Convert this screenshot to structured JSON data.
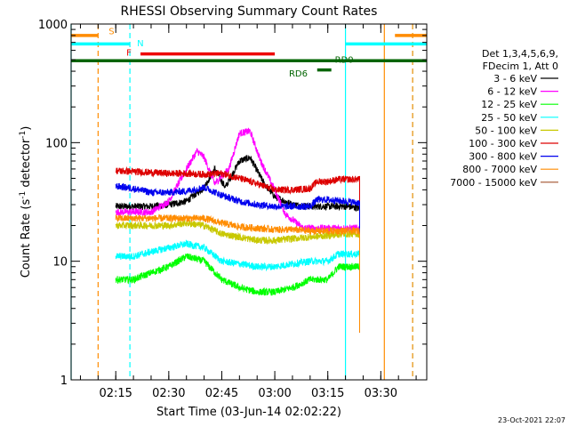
{
  "chart_data": {
    "type": "line",
    "title": "RHESSI Observing Summary Count Rates",
    "xlabel": "Start Time (03-Jun-14 02:02:22)",
    "ylabel_prefix": "Count Rate (s",
    "ylabel_sup1": "-1",
    "ylabel_mid": " detector",
    "ylabel_sup2": "-1",
    "ylabel_suffix": ")",
    "y_scale": "log",
    "ylim": [
      1,
      1000
    ],
    "xlim": [
      "02:02:22",
      "03:43:00"
    ],
    "x_ticks": [
      "02:15",
      "02:30",
      "02:45",
      "03:00",
      "03:15",
      "03:30"
    ],
    "y_ticks": [
      "1",
      "10",
      "100",
      "1000"
    ],
    "timestamp": "23-Oct-2021 22:07",
    "legend_header": [
      "Det 1,3,4,5,6,9,",
      "FDecim 1, Att 0"
    ],
    "series": [
      {
        "name": "3 - 6 keV",
        "color": "#000000",
        "points": [
          [
            "02:15",
            29
          ],
          [
            "02:25",
            29
          ],
          [
            "02:30",
            30
          ],
          [
            "02:35",
            32
          ],
          [
            "02:40",
            42
          ],
          [
            "02:43",
            60
          ],
          [
            "02:46",
            42
          ],
          [
            "02:50",
            70
          ],
          [
            "02:53",
            75
          ],
          [
            "02:57",
            45
          ],
          [
            "03:00",
            35
          ],
          [
            "03:05",
            30
          ],
          [
            "03:10",
            29
          ],
          [
            "03:15",
            29
          ],
          [
            "03:20",
            29
          ],
          [
            "03:24",
            28
          ]
        ]
      },
      {
        "name": "6 - 12 keV",
        "color": "#ff00ff",
        "points": [
          [
            "02:15",
            26
          ],
          [
            "02:25",
            26
          ],
          [
            "02:30",
            32
          ],
          [
            "02:35",
            60
          ],
          [
            "02:38",
            85
          ],
          [
            "02:40",
            75
          ],
          [
            "02:43",
            45
          ],
          [
            "02:47",
            60
          ],
          [
            "02:50",
            120
          ],
          [
            "02:53",
            125
          ],
          [
            "02:56",
            70
          ],
          [
            "03:00",
            40
          ],
          [
            "03:03",
            25
          ],
          [
            "03:08",
            19
          ],
          [
            "03:12",
            19
          ],
          [
            "03:15",
            19
          ],
          [
            "03:20",
            19
          ],
          [
            "03:24",
            19
          ]
        ]
      },
      {
        "name": "12 - 25 keV",
        "color": "#00ff00",
        "points": [
          [
            "02:15",
            7
          ],
          [
            "02:20",
            7
          ],
          [
            "02:25",
            8
          ],
          [
            "02:30",
            9
          ],
          [
            "02:35",
            11
          ],
          [
            "02:40",
            10
          ],
          [
            "02:45",
            7
          ],
          [
            "02:50",
            6
          ],
          [
            "02:55",
            5.5
          ],
          [
            "03:00",
            5.5
          ],
          [
            "03:05",
            6
          ],
          [
            "03:10",
            7
          ],
          [
            "03:15",
            7
          ],
          [
            "03:18",
            9
          ],
          [
            "03:24",
            9
          ]
        ]
      },
      {
        "name": "25 - 50 keV",
        "color": "#00ffff",
        "points": [
          [
            "02:15",
            11
          ],
          [
            "02:20",
            11
          ],
          [
            "02:25",
            12
          ],
          [
            "02:30",
            13
          ],
          [
            "02:35",
            14
          ],
          [
            "02:40",
            13
          ],
          [
            "02:45",
            10
          ],
          [
            "02:50",
            9.5
          ],
          [
            "02:55",
            9
          ],
          [
            "03:00",
            9
          ],
          [
            "03:05",
            9.5
          ],
          [
            "03:10",
            10
          ],
          [
            "03:15",
            10
          ],
          [
            "03:18",
            11.5
          ],
          [
            "03:24",
            11.5
          ]
        ]
      },
      {
        "name": "50 - 100 keV",
        "color": "#c8c800",
        "points": [
          [
            "02:15",
            20
          ],
          [
            "02:20",
            20
          ],
          [
            "02:25",
            20
          ],
          [
            "02:30",
            20
          ],
          [
            "02:35",
            21
          ],
          [
            "02:40",
            20
          ],
          [
            "02:45",
            17
          ],
          [
            "02:50",
            16
          ],
          [
            "02:55",
            15
          ],
          [
            "03:00",
            15
          ],
          [
            "03:05",
            15.5
          ],
          [
            "03:10",
            16
          ],
          [
            "03:15",
            16.5
          ],
          [
            "03:20",
            17
          ],
          [
            "03:24",
            17
          ]
        ]
      },
      {
        "name": "100 - 300 keV",
        "color": "#dd0000",
        "points": [
          [
            "02:15",
            58
          ],
          [
            "02:20",
            57
          ],
          [
            "02:25",
            56
          ],
          [
            "02:30",
            55
          ],
          [
            "02:35",
            55
          ],
          [
            "02:40",
            54
          ],
          [
            "02:45",
            55
          ],
          [
            "02:50",
            50
          ],
          [
            "02:55",
            45
          ],
          [
            "03:00",
            40
          ],
          [
            "03:05",
            40
          ],
          [
            "03:10",
            41
          ],
          [
            "03:12",
            47
          ],
          [
            "03:15",
            47
          ],
          [
            "03:18",
            49
          ],
          [
            "03:24",
            49
          ]
        ]
      },
      {
        "name": "300 - 800 keV",
        "color": "#0000ee",
        "points": [
          [
            "02:15",
            43
          ],
          [
            "02:20",
            41
          ],
          [
            "02:25",
            38
          ],
          [
            "02:30",
            38
          ],
          [
            "02:35",
            39
          ],
          [
            "02:40",
            42
          ],
          [
            "02:45",
            36
          ],
          [
            "02:50",
            32
          ],
          [
            "02:55",
            30
          ],
          [
            "03:00",
            29
          ],
          [
            "03:05",
            29
          ],
          [
            "03:10",
            29
          ],
          [
            "03:12",
            33
          ],
          [
            "03:15",
            33
          ],
          [
            "03:20",
            32
          ],
          [
            "03:24",
            31
          ]
        ]
      },
      {
        "name": "800 - 7000 keV",
        "color": "#ff8c00",
        "points": [
          [
            "02:15",
            23
          ],
          [
            "02:20",
            23
          ],
          [
            "02:25",
            23
          ],
          [
            "02:30",
            23
          ],
          [
            "02:35",
            23
          ],
          [
            "02:40",
            23
          ],
          [
            "02:45",
            21
          ],
          [
            "02:50",
            19.5
          ],
          [
            "02:55",
            19
          ],
          [
            "03:00",
            18.5
          ],
          [
            "03:05",
            18.5
          ],
          [
            "03:10",
            18
          ],
          [
            "03:15",
            18
          ],
          [
            "03:20",
            18
          ],
          [
            "03:24",
            18
          ]
        ]
      },
      {
        "name": "7000 - 15000 keV",
        "color": "#a0522d",
        "points": []
      }
    ],
    "flag_labels": [
      {
        "label": "S",
        "color": "#ff8c00"
      },
      {
        "label": "N",
        "color": "#00ffff"
      },
      {
        "label": "F",
        "color": "#ee0000"
      },
      {
        "label": "RD6",
        "color": "#006400"
      },
      {
        "label": "RD0",
        "color": "#006400"
      }
    ],
    "flag_bars": [
      {
        "label": "S",
        "color": "#ff8c00",
        "y": 800,
        "spans": [
          [
            "02:02:22",
            "02:10"
          ],
          [
            "03:34",
            "03:43"
          ]
        ]
      },
      {
        "label": "N",
        "color": "#00ffff",
        "y": 680,
        "spans": [
          [
            "02:02:22",
            "02:19"
          ],
          [
            "03:20",
            "03:43"
          ]
        ]
      },
      {
        "label": "F",
        "color": "#ee0000",
        "y": 560,
        "spans": [
          [
            "02:22",
            "03:00"
          ]
        ]
      },
      {
        "label": "RD0",
        "color": "#006400",
        "y": 490,
        "spans": [
          [
            "02:02:22",
            "03:43"
          ]
        ]
      },
      {
        "label": "RD6",
        "color": "#006400",
        "y": 410,
        "spans": [
          [
            "03:12",
            "03:16"
          ]
        ]
      }
    ],
    "vertical_markers": [
      {
        "time": "02:02:22",
        "color": "#00ffff",
        "style": "solid"
      },
      {
        "time": "02:10",
        "color": "#ff8c00",
        "style": "dashed"
      },
      {
        "time": "02:19",
        "color": "#00ffff",
        "style": "dashed"
      },
      {
        "time": "03:20",
        "color": "#00ffff",
        "style": "solid"
      },
      {
        "time": "03:31",
        "color": "#ff8c00",
        "style": "solid"
      },
      {
        "time": "03:39",
        "color": "#00ffff",
        "style": "dashed"
      },
      {
        "time": "03:39",
        "color": "#ff8c00",
        "style": "dashed"
      }
    ],
    "data_range": [
      "02:15",
      "03:24"
    ]
  }
}
